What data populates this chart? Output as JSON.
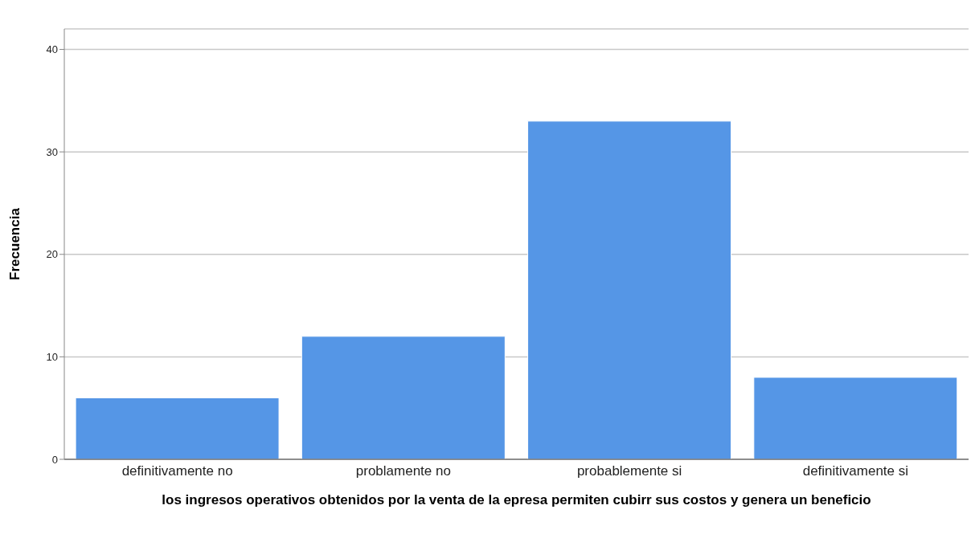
{
  "chart_data": {
    "type": "bar",
    "xlabel": "los ingresos operativos obtenidos por la venta de la epresa permiten cubirr sus costos y genera un beneficio",
    "ylabel": "Frecuencia",
    "categories": [
      "definitivamente no",
      "problamente no",
      "probablemente si",
      "definitivamente si"
    ],
    "values": [
      6,
      12,
      33,
      8
    ],
    "color": "#5596e6",
    "ylim": [
      0,
      42
    ],
    "yticks": [
      0,
      10,
      20,
      30,
      40
    ],
    "grid": "y"
  }
}
